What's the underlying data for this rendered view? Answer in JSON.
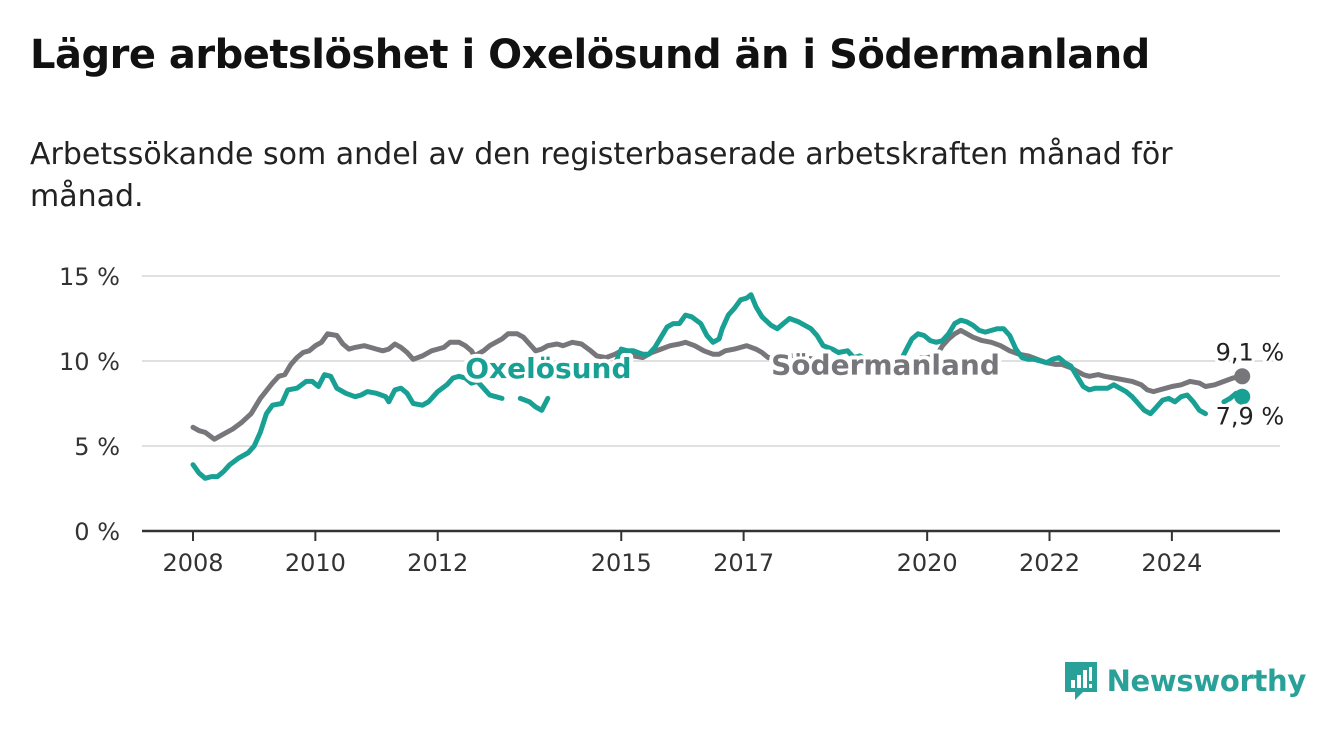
{
  "header": {
    "title": "Lägre arbetslöshet i Oxelösund än i Södermanland",
    "subtitle": "Arbetssökande som andel av den registerbaserade arbetskraften månad för månad."
  },
  "brand": {
    "name": "Newsworthy",
    "icon": "newsworthy-logo-icon",
    "color": "#2aa198"
  },
  "chart_data": {
    "type": "line",
    "title": "Lägre arbetslöshet i Oxelösund än i Södermanland",
    "subtitle": "Arbetssökande som andel av den registerbaserade arbetskraften månad för månad.",
    "xlabel": "",
    "ylabel": "",
    "ylim": [
      0,
      15
    ],
    "xlim": [
      2008.0,
      2025.8
    ],
    "grid": true,
    "yticks": [
      {
        "value": 0,
        "label": "0 %"
      },
      {
        "value": 5,
        "label": "5 %"
      },
      {
        "value": 10,
        "label": "10 %"
      },
      {
        "value": 15,
        "label": "15 %"
      }
    ],
    "xticks": [
      {
        "value": 2008,
        "label": "2008"
      },
      {
        "value": 2010,
        "label": "2010"
      },
      {
        "value": 2012,
        "label": "2012"
      },
      {
        "value": 2015,
        "label": "2015"
      },
      {
        "value": 2017,
        "label": "2017"
      },
      {
        "value": 2020,
        "label": "2020"
      },
      {
        "value": 2022,
        "label": "2022"
      },
      {
        "value": 2024,
        "label": "2024"
      }
    ],
    "series": [
      {
        "name": "Södermanland",
        "color": "#77767a",
        "end_label": "9,1 %",
        "points": [
          [
            2008.0,
            6.1
          ],
          [
            2008.1,
            5.9
          ],
          [
            2008.2,
            5.8
          ],
          [
            2008.35,
            5.4
          ],
          [
            2008.5,
            5.7
          ],
          [
            2008.65,
            6.0
          ],
          [
            2008.8,
            6.4
          ],
          [
            2008.95,
            6.9
          ],
          [
            2009.1,
            7.8
          ],
          [
            2009.3,
            8.7
          ],
          [
            2009.4,
            9.1
          ],
          [
            2009.5,
            9.2
          ],
          [
            2009.6,
            9.8
          ],
          [
            2009.7,
            10.2
          ],
          [
            2009.8,
            10.5
          ],
          [
            2009.9,
            10.6
          ],
          [
            2010.0,
            10.9
          ],
          [
            2010.1,
            11.1
          ],
          [
            2010.2,
            11.6
          ],
          [
            2010.35,
            11.5
          ],
          [
            2010.45,
            11.0
          ],
          [
            2010.55,
            10.7
          ],
          [
            2010.65,
            10.8
          ],
          [
            2010.8,
            10.9
          ],
          [
            2010.9,
            10.8
          ],
          [
            2011.0,
            10.7
          ],
          [
            2011.1,
            10.6
          ],
          [
            2011.2,
            10.7
          ],
          [
            2011.3,
            11.0
          ],
          [
            2011.4,
            10.8
          ],
          [
            2011.5,
            10.5
          ],
          [
            2011.6,
            10.1
          ],
          [
            2011.75,
            10.3
          ],
          [
            2011.9,
            10.6
          ],
          [
            2012.0,
            10.7
          ],
          [
            2012.1,
            10.8
          ],
          [
            2012.2,
            11.1
          ],
          [
            2012.35,
            11.1
          ],
          [
            2012.45,
            10.9
          ],
          [
            2012.55,
            10.6
          ],
          [
            2012.6,
            10.3
          ],
          [
            2012.75,
            10.6
          ],
          [
            2012.85,
            10.9
          ],
          [
            2012.95,
            11.1
          ],
          [
            2013.05,
            11.3
          ],
          [
            2013.15,
            11.6
          ],
          [
            2013.3,
            11.6
          ],
          [
            2013.4,
            11.4
          ],
          [
            2013.5,
            11.0
          ],
          [
            2013.6,
            10.6
          ],
          [
            2013.7,
            10.7
          ],
          [
            2013.8,
            10.9
          ],
          [
            2013.95,
            11.0
          ],
          [
            2014.05,
            10.9
          ],
          [
            2014.2,
            11.1
          ],
          [
            2014.35,
            11.0
          ],
          [
            2014.5,
            10.6
          ],
          [
            2014.6,
            10.3
          ],
          [
            2014.75,
            10.2
          ],
          [
            2014.9,
            10.4
          ],
          [
            2015.0,
            10.6
          ],
          [
            2015.1,
            10.5
          ],
          [
            2015.2,
            10.3
          ],
          [
            2015.35,
            10.2
          ],
          [
            2015.5,
            10.5
          ],
          [
            2015.65,
            10.7
          ],
          [
            2015.8,
            10.9
          ],
          [
            2015.95,
            11.0
          ],
          [
            2016.05,
            11.1
          ],
          [
            2016.2,
            10.9
          ],
          [
            2016.35,
            10.6
          ],
          [
            2016.5,
            10.4
          ],
          [
            2016.6,
            10.4
          ],
          [
            2016.7,
            10.6
          ],
          [
            2016.85,
            10.7
          ],
          [
            2016.95,
            10.8
          ],
          [
            2017.05,
            10.9
          ],
          [
            2017.2,
            10.7
          ],
          [
            2017.3,
            10.5
          ],
          [
            2017.4,
            10.2
          ],
          [
            2017.5,
            10.2
          ],
          [
            2017.6,
            10.3
          ],
          [
            2017.75,
            10.3
          ],
          [
            2017.9,
            10.3
          ],
          [
            2018.0,
            10.2
          ],
          [
            2018.15,
            10.1
          ],
          [
            2018.3,
            9.9
          ],
          null,
          [
            2018.45,
            10.0
          ],
          [
            2018.6,
            10.1
          ],
          [
            2018.75,
            9.9
          ],
          [
            2018.9,
            10.0
          ],
          [
            2019.05,
            9.9
          ],
          null,
          [
            2019.55,
            9.8
          ],
          [
            2019.7,
            10.0
          ],
          [
            2019.8,
            10.0
          ],
          [
            2019.9,
            10.2
          ],
          [
            2020.0,
            10.2
          ],
          [
            2020.15,
            10.3
          ],
          [
            2020.25,
            10.9
          ],
          [
            2020.35,
            11.3
          ],
          [
            2020.45,
            11.6
          ],
          [
            2020.55,
            11.8
          ],
          [
            2020.65,
            11.6
          ],
          [
            2020.75,
            11.4
          ],
          [
            2020.9,
            11.2
          ],
          [
            2021.05,
            11.1
          ],
          [
            2021.2,
            10.9
          ],
          [
            2021.35,
            10.6
          ],
          [
            2021.5,
            10.4
          ],
          [
            2021.65,
            10.3
          ],
          [
            2021.8,
            10.1
          ],
          [
            2021.95,
            9.9
          ],
          [
            2022.1,
            9.8
          ],
          [
            2022.2,
            9.8
          ],
          [
            2022.35,
            9.6
          ],
          [
            2022.45,
            9.4
          ],
          [
            2022.55,
            9.2
          ],
          [
            2022.65,
            9.1
          ],
          [
            2022.8,
            9.2
          ],
          [
            2022.9,
            9.1
          ],
          [
            2023.05,
            9.0
          ],
          [
            2023.2,
            8.9
          ],
          [
            2023.35,
            8.8
          ],
          [
            2023.5,
            8.6
          ],
          [
            2023.6,
            8.3
          ],
          [
            2023.7,
            8.2
          ],
          [
            2023.8,
            8.3
          ],
          [
            2023.9,
            8.4
          ],
          [
            2024.0,
            8.5
          ],
          [
            2024.15,
            8.6
          ],
          [
            2024.3,
            8.8
          ],
          [
            2024.45,
            8.7
          ],
          [
            2024.55,
            8.5
          ],
          [
            2024.7,
            8.6
          ],
          [
            2024.85,
            8.8
          ],
          [
            2025.0,
            9.0
          ],
          [
            2025.15,
            9.1
          ]
        ]
      },
      {
        "name": "Oxelösund",
        "color": "#18a094",
        "end_label": "7,9 %",
        "points": [
          [
            2008.0,
            3.9
          ],
          [
            2008.1,
            3.4
          ],
          [
            2008.2,
            3.1
          ],
          [
            2008.3,
            3.2
          ],
          [
            2008.4,
            3.2
          ],
          [
            2008.5,
            3.5
          ],
          [
            2008.6,
            3.9
          ],
          [
            2008.75,
            4.3
          ],
          [
            2008.9,
            4.6
          ],
          [
            2009.0,
            5.0
          ],
          [
            2009.1,
            5.8
          ],
          [
            2009.2,
            6.9
          ],
          [
            2009.3,
            7.4
          ],
          [
            2009.45,
            7.5
          ],
          [
            2009.55,
            8.3
          ],
          [
            2009.7,
            8.4
          ],
          [
            2009.85,
            8.8
          ],
          [
            2009.95,
            8.8
          ],
          [
            2010.05,
            8.5
          ],
          [
            2010.15,
            9.2
          ],
          [
            2010.25,
            9.1
          ],
          [
            2010.35,
            8.4
          ],
          [
            2010.5,
            8.1
          ],
          [
            2010.65,
            7.9
          ],
          [
            2010.75,
            8.0
          ],
          [
            2010.85,
            8.2
          ],
          [
            2011.0,
            8.1
          ],
          [
            2011.15,
            7.9
          ],
          [
            2011.2,
            7.6
          ],
          [
            2011.3,
            8.3
          ],
          [
            2011.4,
            8.4
          ],
          [
            2011.5,
            8.1
          ],
          [
            2011.6,
            7.5
          ],
          [
            2011.75,
            7.4
          ],
          [
            2011.85,
            7.6
          ],
          [
            2012.0,
            8.2
          ],
          [
            2012.15,
            8.6
          ],
          [
            2012.25,
            9.0
          ],
          [
            2012.35,
            9.1
          ],
          [
            2012.45,
            9.0
          ],
          [
            2012.55,
            8.7
          ],
          [
            2012.65,
            8.8
          ],
          [
            2012.75,
            8.4
          ],
          [
            2012.85,
            8.0
          ],
          [
            2012.95,
            7.9
          ],
          [
            2013.05,
            7.8
          ],
          null,
          [
            2013.35,
            7.8
          ],
          [
            2013.5,
            7.6
          ],
          [
            2013.6,
            7.3
          ],
          [
            2013.7,
            7.1
          ],
          [
            2013.8,
            7.8
          ],
          null,
          [
            2014.8,
            9.3
          ],
          [
            2014.9,
            9.8
          ],
          [
            2015.0,
            10.7
          ],
          [
            2015.1,
            10.6
          ],
          [
            2015.2,
            10.6
          ],
          [
            2015.35,
            10.4
          ],
          [
            2015.45,
            10.4
          ],
          [
            2015.55,
            10.8
          ],
          [
            2015.65,
            11.4
          ],
          [
            2015.75,
            12.0
          ],
          [
            2015.85,
            12.2
          ],
          [
            2015.95,
            12.2
          ],
          [
            2016.05,
            12.7
          ],
          [
            2016.15,
            12.6
          ],
          [
            2016.3,
            12.2
          ],
          [
            2016.4,
            11.5
          ],
          [
            2016.5,
            11.1
          ],
          [
            2016.6,
            11.3
          ],
          [
            2016.65,
            11.9
          ],
          [
            2016.75,
            12.7
          ],
          [
            2016.85,
            13.1
          ],
          [
            2016.95,
            13.6
          ],
          [
            2017.05,
            13.7
          ],
          [
            2017.12,
            13.9
          ],
          [
            2017.2,
            13.2
          ],
          [
            2017.3,
            12.6
          ],
          [
            2017.45,
            12.1
          ],
          [
            2017.55,
            11.9
          ],
          [
            2017.65,
            12.2
          ],
          [
            2017.75,
            12.5
          ],
          [
            2017.9,
            12.3
          ],
          [
            2018.0,
            12.1
          ],
          [
            2018.1,
            11.9
          ],
          [
            2018.2,
            11.5
          ],
          [
            2018.3,
            10.9
          ],
          [
            2018.45,
            10.7
          ],
          [
            2018.55,
            10.5
          ],
          [
            2018.7,
            10.6
          ],
          [
            2018.8,
            10.2
          ],
          [
            2018.9,
            10.3
          ],
          [
            2019.0,
            10.1
          ],
          [
            2019.1,
            10.0
          ],
          [
            2019.2,
            9.9
          ],
          [
            2019.25,
            9.8
          ],
          null,
          [
            2019.55,
            9.9
          ],
          [
            2019.65,
            10.6
          ],
          [
            2019.75,
            11.3
          ],
          [
            2019.85,
            11.6
          ],
          [
            2019.95,
            11.5
          ],
          [
            2020.05,
            11.2
          ],
          [
            2020.15,
            11.1
          ],
          [
            2020.25,
            11.2
          ],
          [
            2020.35,
            11.6
          ],
          [
            2020.45,
            12.2
          ],
          [
            2020.55,
            12.4
          ],
          [
            2020.65,
            12.3
          ],
          [
            2020.75,
            12.1
          ],
          [
            2020.85,
            11.8
          ],
          [
            2020.95,
            11.7
          ],
          [
            2021.05,
            11.8
          ],
          [
            2021.15,
            11.9
          ],
          [
            2021.25,
            11.9
          ],
          [
            2021.35,
            11.5
          ],
          [
            2021.45,
            10.7
          ],
          [
            2021.55,
            10.2
          ],
          [
            2021.65,
            10.1
          ],
          [
            2021.75,
            10.1
          ],
          [
            2021.85,
            10.0
          ],
          [
            2021.95,
            9.9
          ],
          [
            2022.05,
            10.1
          ],
          [
            2022.15,
            10.2
          ],
          [
            2022.25,
            9.9
          ],
          [
            2022.35,
            9.7
          ],
          [
            2022.45,
            9.1
          ],
          [
            2022.55,
            8.5
          ],
          [
            2022.65,
            8.3
          ],
          [
            2022.75,
            8.4
          ],
          [
            2022.85,
            8.4
          ],
          [
            2022.95,
            8.4
          ],
          [
            2023.05,
            8.6
          ],
          [
            2023.15,
            8.4
          ],
          [
            2023.25,
            8.2
          ],
          [
            2023.35,
            7.9
          ],
          [
            2023.45,
            7.5
          ],
          [
            2023.55,
            7.1
          ],
          [
            2023.65,
            6.9
          ],
          [
            2023.75,
            7.3
          ],
          [
            2023.85,
            7.7
          ],
          [
            2023.95,
            7.8
          ],
          [
            2024.05,
            7.6
          ],
          [
            2024.15,
            7.9
          ],
          [
            2024.25,
            8.0
          ],
          [
            2024.35,
            7.6
          ],
          [
            2024.45,
            7.1
          ],
          [
            2024.55,
            6.9
          ],
          null,
          [
            2024.85,
            7.6
          ],
          [
            2024.95,
            7.8
          ],
          [
            2025.05,
            8.1
          ],
          [
            2025.15,
            7.9
          ]
        ]
      }
    ],
    "annotations": [
      {
        "text": "Oxelösund",
        "x": 2012.45,
        "y": 9.0,
        "color": "#18a094",
        "anchor": "start"
      },
      {
        "text": "Södermanland",
        "x": 2017.45,
        "y": 9.2,
        "color": "#77767a",
        "anchor": "start"
      }
    ]
  }
}
